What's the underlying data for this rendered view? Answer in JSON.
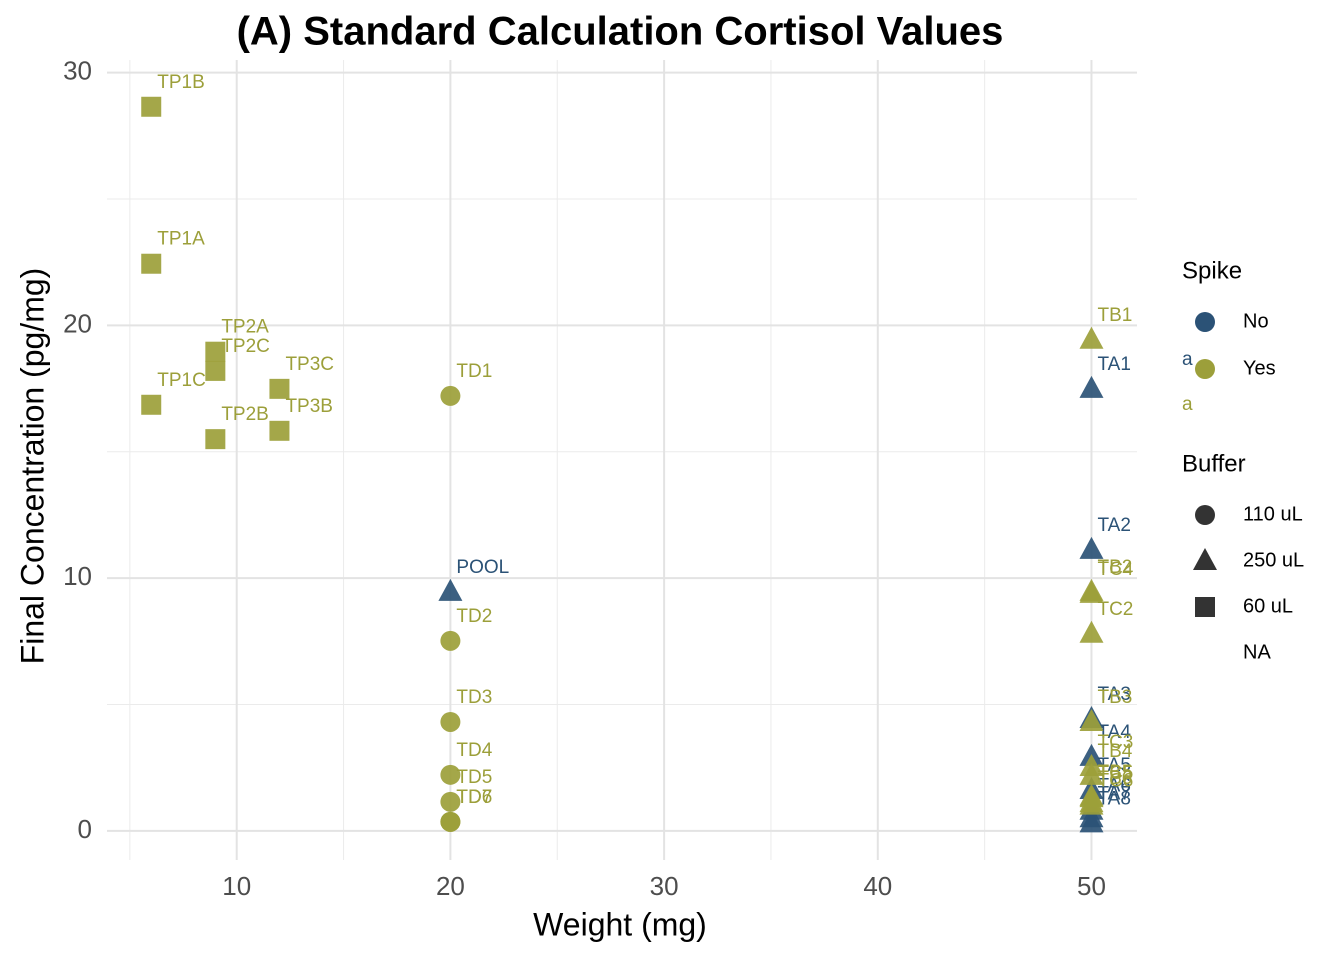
{
  "chart_data": {
    "type": "scatter",
    "title": "(A) Standard Calculation Cortisol Values",
    "x_label": "Weight (mg)",
    "y_label": "Final Concentration (pg/mg)",
    "xlim": [
      3.93,
      52.13
    ],
    "ylim": [
      -1.15,
      30.5
    ],
    "xticks": [
      10,
      20,
      30,
      40,
      50
    ],
    "yticks": [
      0,
      10,
      20,
      30
    ],
    "x_minor_gridlines": [
      5,
      15,
      25,
      35,
      45
    ],
    "y_minor_gridlines": [
      5,
      15,
      25
    ],
    "grid": true,
    "color_legend_title": "Spike",
    "shape_legend_title": "Buffer",
    "shapes": [
      {
        "name": "110 uL",
        "shape": "circle"
      },
      {
        "name": "250 uL",
        "shape": "triangle"
      },
      {
        "name": "60 uL",
        "shape": "square"
      },
      {
        "name": "NA"
      }
    ],
    "series": [
      {
        "name": "No",
        "color": "#2b5276",
        "key_text": "a",
        "labels": [
          "POOL",
          "TA1",
          "TA2",
          "TA3",
          "TA4",
          "TA5",
          "TA6",
          "TA7",
          "TA8"
        ],
        "x": [
          20,
          50,
          50,
          50,
          50,
          50,
          50,
          50,
          50
        ],
        "values": [
          9.46,
          17.49,
          11.12,
          4.43,
          2.93,
          1.62,
          0.8,
          0.5,
          0.3
        ],
        "buffer": [
          1,
          1,
          1,
          1,
          1,
          1,
          1,
          1,
          1
        ]
      },
      {
        "name": "Yes",
        "color": "#9c9f3a",
        "key_text": "a",
        "labels": [
          "TP1B",
          "TP1A",
          "TP1C",
          "TP2A",
          "TP2C",
          "TP2B",
          "TP3C",
          "TP3B",
          "TD1",
          "TD2",
          "TD3",
          "TD4",
          "TD5",
          "TD6",
          "TD7",
          "TB1",
          "TB2",
          "TC4",
          "TC2",
          "TB3",
          "TC3",
          "TB4",
          "TB5",
          "TC5",
          "TB6",
          "TC6"
        ],
        "x": [
          6,
          6,
          6,
          9,
          9,
          9,
          12,
          12,
          20,
          20,
          20,
          20,
          20,
          20,
          20,
          50,
          50,
          50,
          50,
          50,
          50,
          50,
          50,
          50,
          50,
          50
        ],
        "values": [
          28.65,
          22.44,
          16.86,
          18.96,
          18.2,
          15.5,
          17.49,
          15.83,
          17.21,
          7.52,
          4.31,
          2.22,
          1.15,
          0.36,
          0.36,
          19.43,
          9.46,
          9.38,
          7.8,
          4.31,
          2.53,
          2.18,
          1.35,
          1.3,
          1.1,
          1.0
        ],
        "buffer": [
          2,
          2,
          2,
          2,
          2,
          2,
          2,
          2,
          0,
          0,
          0,
          0,
          0,
          0,
          0,
          1,
          1,
          1,
          1,
          1,
          1,
          1,
          1,
          1,
          1,
          1
        ]
      }
    ]
  }
}
